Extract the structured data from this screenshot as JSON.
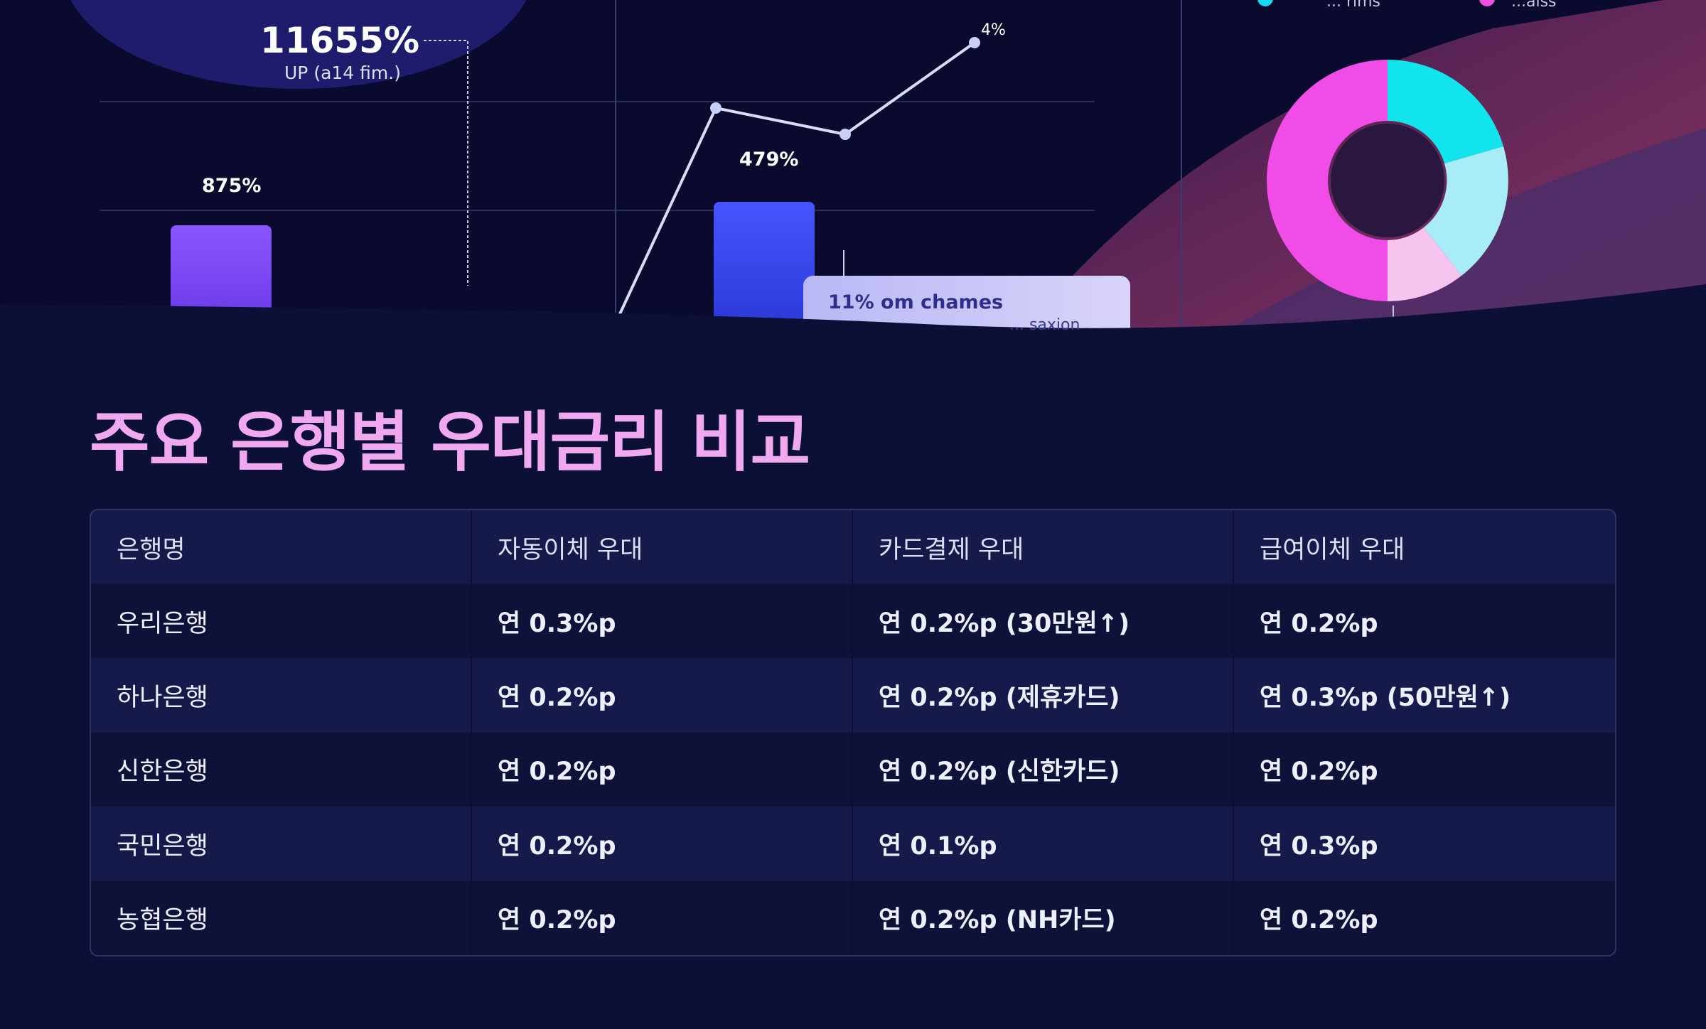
{
  "hero": {
    "big_value": "11655%",
    "big_value_sub": "UP (a14 fim.)",
    "bar1_label": "875%",
    "bar2_label": "479%",
    "point_label": "4%",
    "card_line1": "11% om chames",
    "card_line2": "... saxion",
    "legend": [
      "... rims",
      "...aiss"
    ],
    "colors": {
      "bar1": "#7b4cf5",
      "bar2": "#3a4df0",
      "donut_cyan": "#12e4ee",
      "donut_pink": "#f04ce8",
      "donut_light_pink": "#f6c4ee",
      "donut_light_cyan": "#a8ecf7"
    }
  },
  "title": "주요 은행별 우대금리 비교",
  "table": {
    "headers": [
      "은행명",
      "자동이체 우대",
      "카드결제 우대",
      "급여이체 우대"
    ],
    "rows": [
      [
        "우리은행",
        "연 0.3%p",
        "연 0.2%p (30만원↑)",
        "연 0.2%p"
      ],
      [
        "하나은행",
        "연 0.2%p",
        "연 0.2%p (제휴카드)",
        "연 0.3%p (50만원↑)"
      ],
      [
        "신한은행",
        "연 0.2%p",
        "연 0.2%p (신한카드)",
        "연 0.2%p"
      ],
      [
        "국민은행",
        "연 0.2%p",
        "연 0.1%p",
        "연 0.3%p"
      ],
      [
        "농협은행",
        "연 0.2%p",
        "연 0.2%p (NH카드)",
        "연 0.2%p"
      ]
    ]
  }
}
